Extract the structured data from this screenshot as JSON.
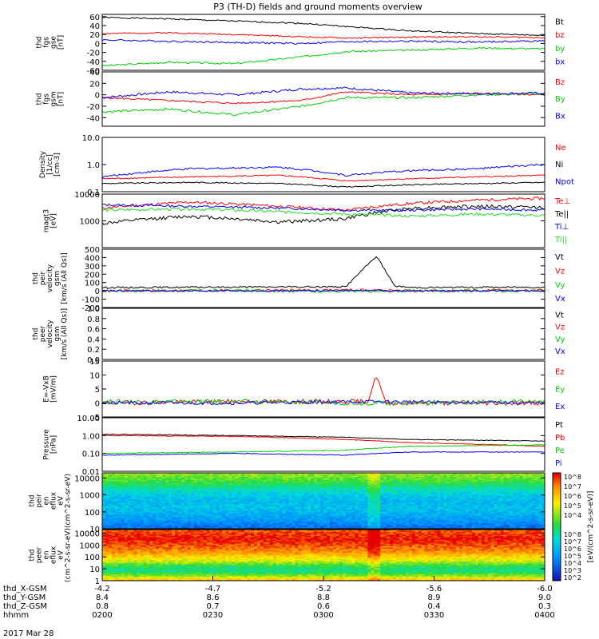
{
  "title": "P3 (TH-D) fields and ground moments overview",
  "x_axis": {
    "tick_count": 5,
    "rows": [
      {
        "label": "thd_X-GSM",
        "values": [
          "-4.2",
          "-4.7",
          "-5.2",
          "-5.6",
          "-6.0"
        ]
      },
      {
        "label": "thd_Y-GSM",
        "values": [
          "8.4",
          "8.6",
          "8.8",
          "8.9",
          "9.0"
        ]
      },
      {
        "label": "thd_Z-GSM",
        "values": [
          "0.8",
          "0.7",
          "0.6",
          "0.4",
          "0.3"
        ]
      },
      {
        "label": "hhmm",
        "values": [
          "0200",
          "0230",
          "0300",
          "0330",
          "0400"
        ]
      }
    ],
    "date": "2017 Mar 28"
  },
  "colorbar_label": "[eV/(cm^2-s-sr-eV)]",
  "colors": {
    "black": "#000000",
    "red": "#ff0000",
    "green": "#00d000",
    "blue": "#0000ff",
    "lightgreen": "#20e020"
  },
  "chart_data": [
    {
      "id": "fgs_gse",
      "type": "line",
      "ylabel": [
        "thd",
        "fgs",
        "gse",
        "[nT]"
      ],
      "ylim": [
        -60,
        65
      ],
      "ticks": [
        60,
        40,
        20,
        0,
        -20,
        -40,
        -60
      ],
      "series": [
        {
          "name": "Bt",
          "color": "#000000",
          "x": [
            0,
            0.15,
            0.3,
            0.45,
            0.55,
            0.7,
            0.85,
            1
          ],
          "values": [
            58,
            55,
            50,
            45,
            38,
            28,
            22,
            18
          ],
          "noise": 1.5,
          "seed": 1
        },
        {
          "name": "bz",
          "color": "#ff0000",
          "x": [
            0,
            0.15,
            0.3,
            0.45,
            0.55,
            0.7,
            0.85,
            1
          ],
          "values": [
            22,
            24,
            20,
            15,
            12,
            14,
            15,
            13
          ],
          "noise": 1.5,
          "seed": 2
        },
        {
          "name": "by",
          "color": "#00d000",
          "x": [
            0,
            0.15,
            0.3,
            0.45,
            0.55,
            0.7,
            0.85,
            1
          ],
          "values": [
            -50,
            -42,
            -45,
            -30,
            -18,
            -15,
            -10,
            -12
          ],
          "noise": 2,
          "seed": 3
        },
        {
          "name": "bx",
          "color": "#0000ff",
          "x": [
            0,
            0.15,
            0.3,
            0.45,
            0.55,
            0.7,
            0.85,
            1
          ],
          "values": [
            8,
            5,
            2,
            0,
            4,
            5,
            3,
            6
          ],
          "noise": 2,
          "seed": 4
        }
      ]
    },
    {
      "id": "fgs_gsm",
      "type": "line",
      "ylabel": [
        "thd",
        "fgs",
        "gsm",
        "[nT]"
      ],
      "ylim": [
        -55,
        40
      ],
      "ticks": [
        40,
        20,
        0,
        -20,
        -40
      ],
      "series": [
        {
          "name": "Bz",
          "color": "#ff0000",
          "x": [
            0,
            0.15,
            0.3,
            0.45,
            0.55,
            0.7,
            0.85,
            1
          ],
          "values": [
            -5,
            -10,
            -15,
            -10,
            5,
            0,
            2,
            0
          ],
          "noise": 1.5,
          "seed": 5
        },
        {
          "name": "By",
          "color": "#00d000",
          "x": [
            0,
            0.15,
            0.3,
            0.45,
            0.55,
            0.7,
            0.85,
            1
          ],
          "values": [
            -30,
            -25,
            -35,
            -20,
            -5,
            -5,
            0,
            2
          ],
          "noise": 2,
          "seed": 6
        },
        {
          "name": "Bx",
          "color": "#0000ff",
          "x": [
            0,
            0.15,
            0.3,
            0.45,
            0.55,
            0.7,
            0.85,
            1
          ],
          "values": [
            -5,
            5,
            0,
            10,
            12,
            3,
            2,
            3
          ],
          "noise": 2,
          "seed": 7
        }
      ]
    },
    {
      "id": "density",
      "type": "line",
      "log": true,
      "ylabel": [
        "Density",
        "[1/cc]",
        "[cm-3]"
      ],
      "ylim": [
        0.1,
        10
      ],
      "ticks": [
        10.0,
        1.0,
        0.1
      ],
      "tick_labels": [
        "10.0",
        "1.0",
        "0.1"
      ],
      "series": [
        {
          "name": "Ne",
          "color": "#ff0000",
          "x": [
            0,
            0.2,
            0.4,
            0.55,
            0.7,
            0.85,
            1
          ],
          "values": [
            0.3,
            0.35,
            0.4,
            0.25,
            0.3,
            0.35,
            0.4
          ],
          "noise": 0.05,
          "seed": 8
        },
        {
          "name": "Ni",
          "color": "#000000",
          "x": [
            0,
            0.2,
            0.4,
            0.55,
            0.7,
            0.85,
            1
          ],
          "values": [
            0.2,
            0.22,
            0.2,
            0.15,
            0.18,
            0.2,
            0.22
          ],
          "noise": 0.05,
          "seed": 9
        },
        {
          "name": "Npot",
          "color": "#0000ff",
          "x": [
            0,
            0.2,
            0.4,
            0.55,
            0.7,
            0.85,
            1
          ],
          "values": [
            0.35,
            0.7,
            0.8,
            0.4,
            0.6,
            0.7,
            1.0
          ],
          "noise": 0.08,
          "seed": 10
        }
      ]
    },
    {
      "id": "temperature",
      "type": "line",
      "log": true,
      "ylabel": [
        "magt3",
        "[eV]"
      ],
      "ylim": [
        100,
        10000
      ],
      "ticks": [
        10000,
        1000
      ],
      "tick_labels": [
        "10000",
        "1000"
      ],
      "series": [
        {
          "name": "Te⊥",
          "color": "#ff0000",
          "x": [
            0,
            0.2,
            0.4,
            0.55,
            0.7,
            0.85,
            1
          ],
          "values": [
            3000,
            5000,
            3500,
            2500,
            4500,
            6000,
            7000
          ],
          "noise": 0.12,
          "seed": 11
        },
        {
          "name": "Te||",
          "color": "#000000",
          "x": [
            0,
            0.2,
            0.4,
            0.55,
            0.7,
            0.85,
            1
          ],
          "values": [
            800,
            1500,
            900,
            1200,
            3000,
            3500,
            3200
          ],
          "noise": 0.15,
          "seed": 12
        },
        {
          "name": "Ti⊥",
          "color": "#0000ff",
          "x": [
            0,
            0.2,
            0.4,
            0.55,
            0.7,
            0.85,
            1
          ],
          "values": [
            4000,
            3500,
            3000,
            2500,
            2500,
            2800,
            2500
          ],
          "noise": 0.1,
          "seed": 13
        },
        {
          "name": "Ti||",
          "color": "#20e020",
          "x": [
            0,
            0.2,
            0.4,
            0.55,
            0.7,
            0.85,
            1
          ],
          "values": [
            2500,
            2800,
            2200,
            1800,
            1500,
            1800,
            1600
          ],
          "noise": 0.12,
          "seed": 14
        }
      ]
    },
    {
      "id": "peir_velocity",
      "type": "line",
      "ylabel": [
        "thd",
        "peir",
        "velocity",
        "gsm",
        "[km/s (All Qs)]"
      ],
      "ylim": [
        -200,
        500
      ],
      "ticks": [
        500,
        400,
        300,
        200,
        100,
        0,
        -100,
        -200
      ],
      "series": [
        {
          "name": "Vt",
          "color": "#000000",
          "x": [
            0,
            0.3,
            0.55,
            0.62,
            0.66,
            0.7,
            1
          ],
          "values": [
            40,
            45,
            50,
            420,
            60,
            40,
            45
          ],
          "noise": 10,
          "seed": 15
        },
        {
          "name": "Vz",
          "color": "#ff0000",
          "x": [
            0,
            0.3,
            0.6,
            0.7,
            1
          ],
          "values": [
            0,
            5,
            10,
            0,
            5
          ],
          "noise": 15,
          "seed": 16
        },
        {
          "name": "Vy",
          "color": "#00d000",
          "x": [
            0,
            0.3,
            0.6,
            0.7,
            1
          ],
          "values": [
            0,
            5,
            -10,
            0,
            0
          ],
          "noise": 15,
          "seed": 17
        },
        {
          "name": "Vx",
          "color": "#0000ff",
          "x": [
            0,
            0.3,
            0.6,
            0.7,
            1
          ],
          "values": [
            0,
            0,
            5,
            0,
            0
          ],
          "noise": 10,
          "seed": 18
        }
      ]
    },
    {
      "id": "peer_velocity",
      "type": "line",
      "ylabel": [
        "thd",
        "peer",
        "velocity",
        "gsm",
        "[km/s (All Qs)]"
      ],
      "ylim": [
        0,
        1.0
      ],
      "ticks": [
        1.0,
        0.8,
        0.6,
        0.4,
        0.2,
        0.0
      ],
      "tick_labels": [
        "1.0",
        "0.8",
        "0.6",
        "0.4",
        "0.2",
        "0.0"
      ],
      "series": [
        {
          "name": "Vt",
          "color": "#000000",
          "x": [],
          "values": []
        },
        {
          "name": "Vz",
          "color": "#ff0000",
          "x": [],
          "values": []
        },
        {
          "name": "Vy",
          "color": "#00d000",
          "x": [],
          "values": []
        },
        {
          "name": "Vx",
          "color": "#0000ff",
          "x": [],
          "values": []
        }
      ]
    },
    {
      "id": "e_field",
      "type": "line",
      "ylabel": [
        "E=-VxB",
        "[mV/m]"
      ],
      "ylim": [
        -5,
        15
      ],
      "ticks": [
        15,
        10,
        5,
        0,
        -5
      ],
      "series": [
        {
          "name": "Ez",
          "color": "#ff0000",
          "x": [
            0,
            0.3,
            0.6,
            0.62,
            0.64,
            1
          ],
          "values": [
            0,
            0.5,
            0.5,
            10,
            0,
            0
          ],
          "noise": 0.8,
          "seed": 19
        },
        {
          "name": "Ey",
          "color": "#00d000",
          "x": [
            0,
            0.3,
            0.6,
            1
          ],
          "values": [
            0.5,
            0.5,
            0,
            0.5
          ],
          "noise": 0.8,
          "seed": 20
        },
        {
          "name": "Ex",
          "color": "#0000ff",
          "x": [
            0,
            0.3,
            0.6,
            1
          ],
          "values": [
            0,
            0,
            0.5,
            0
          ],
          "noise": 0.6,
          "seed": 21
        }
      ]
    },
    {
      "id": "pressure",
      "type": "line",
      "log": true,
      "ylabel": [
        "Pressure",
        "[nPa]"
      ],
      "ylim": [
        0.01,
        10
      ],
      "ticks": [
        10,
        1,
        0.1,
        0.01
      ],
      "tick_labels": [
        "10.00",
        "1.00",
        "0.10",
        "0.01"
      ],
      "series": [
        {
          "name": "Pt",
          "color": "#000000",
          "x": [
            0,
            0.3,
            0.55,
            0.7,
            1
          ],
          "values": [
            1.2,
            1.0,
            0.8,
            0.6,
            0.5
          ],
          "noise": 0.04,
          "seed": 22
        },
        {
          "name": "Pb",
          "color": "#ff0000",
          "x": [
            0,
            0.3,
            0.55,
            0.7,
            1
          ],
          "values": [
            1.0,
            0.9,
            0.6,
            0.4,
            0.25
          ],
          "noise": 0.04,
          "seed": 23
        },
        {
          "name": "Pe",
          "color": "#00d000",
          "x": [
            0,
            0.3,
            0.55,
            0.7,
            1
          ],
          "values": [
            0.1,
            0.12,
            0.15,
            0.25,
            0.3
          ],
          "noise": 0.04,
          "seed": 24
        },
        {
          "name": "Pi",
          "color": "#0000ff",
          "x": [
            0,
            0.3,
            0.55,
            0.7,
            1
          ],
          "values": [
            0.08,
            0.1,
            0.08,
            0.12,
            0.12
          ],
          "noise": 0.04,
          "seed": 25
        }
      ]
    },
    {
      "id": "peir_spectrogram",
      "type": "heatmap",
      "ylabel": [
        "thd",
        "peir",
        "en",
        "eflux",
        "eV",
        "(cm^2-s-sr-eV)"
      ],
      "ylim": [
        10,
        20000
      ],
      "ticks": [
        10000,
        1000,
        100,
        10
      ],
      "tick_labels": [
        "10000",
        "1000",
        "100",
        "10"
      ],
      "colorbar_ticks": [
        "10^8",
        "10^7",
        "10^6",
        "10^5",
        "10^4"
      ],
      "band_levels": [
        0.62,
        0.55,
        0.45,
        0.35,
        0.3,
        0.32,
        0.28,
        0.22,
        0.15
      ],
      "seed": 26
    },
    {
      "id": "peer_spectrogram",
      "type": "heatmap",
      "ylabel": [
        "thd",
        "peer",
        "en",
        "eflux",
        "eV",
        "(cm^2-s-sr-eV)"
      ],
      "ylim": [
        1,
        20000
      ],
      "ticks": [
        10000,
        1000,
        100,
        10,
        1
      ],
      "tick_labels": [
        "10000",
        "1000",
        "100",
        "10",
        "1"
      ],
      "colorbar_ticks": [
        "10^8",
        "10^7",
        "10^6",
        "10^5",
        "10^4",
        "10^3",
        "10^2"
      ],
      "band_levels": [
        0.92,
        0.96,
        0.98,
        0.95,
        0.9,
        0.85,
        0.75,
        0.65,
        0.5,
        0.45,
        0.6,
        0.8
      ],
      "seed": 27
    }
  ],
  "legends": [
    [
      [
        "Bt",
        "#000000"
      ],
      [
        "bz",
        "#ff0000"
      ],
      [
        "by",
        "#00d000"
      ],
      [
        "bx",
        "#0000ff"
      ]
    ],
    [
      [
        "Bz",
        "#ff0000"
      ],
      [
        "By",
        "#00d000"
      ],
      [
        "Bx",
        "#0000ff"
      ]
    ],
    [
      [
        "Ne",
        "#ff0000"
      ],
      [
        "Ni",
        "#000000"
      ],
      [
        "Npot",
        "#0000ff"
      ]
    ],
    [
      [
        "Te⊥",
        "#ff0000"
      ],
      [
        "Te||",
        "#000000"
      ],
      [
        "Ti⊥",
        "#0000ff"
      ],
      [
        "Ti||",
        "#20e020"
      ]
    ],
    [
      [
        "Vt",
        "#000000"
      ],
      [
        "Vz",
        "#ff0000"
      ],
      [
        "Vy",
        "#00d000"
      ],
      [
        "Vx",
        "#0000ff"
      ]
    ],
    [
      [
        "Vt",
        "#000000"
      ],
      [
        "Vz",
        "#ff0000"
      ],
      [
        "Vy",
        "#00d000"
      ],
      [
        "Vx",
        "#0000ff"
      ]
    ],
    [
      [
        "Ez",
        "#ff0000"
      ],
      [
        "Ey",
        "#00d000"
      ],
      [
        "Ex",
        "#0000ff"
      ]
    ],
    [
      [
        "Pt",
        "#000000"
      ],
      [
        "Pb",
        "#ff0000"
      ],
      [
        "Pe",
        "#00d000"
      ],
      [
        "Pi",
        "#0000ff"
      ]
    ]
  ]
}
